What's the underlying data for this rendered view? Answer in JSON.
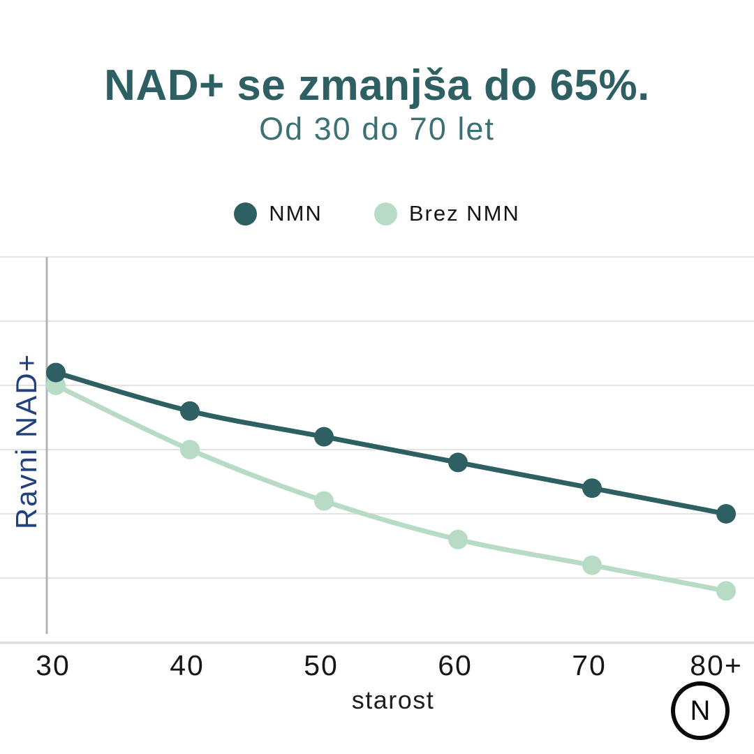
{
  "header": {
    "title": "NAD+ se zmanjša do 65%.",
    "subtitle": "Od 30 do 70 let"
  },
  "legend": {
    "items": [
      {
        "label": "NMN",
        "color": "#2d5f63"
      },
      {
        "label": "Brez NMN",
        "color": "#b7dbc5"
      }
    ]
  },
  "chart_data": {
    "type": "line",
    "title": "NAD+ se zmanjša do 65%.",
    "subtitle": "Od 30 do 70 let",
    "categories": [
      "30",
      "40",
      "50",
      "60",
      "70",
      "80+"
    ],
    "series": [
      {
        "name": "NMN",
        "color": "#2d5f63",
        "values": [
          42,
          36,
          32,
          28,
          24,
          20
        ]
      },
      {
        "name": "Brez NMN",
        "color": "#b7dbc5",
        "values": [
          40,
          30,
          22,
          16,
          12,
          8
        ]
      }
    ],
    "xlabel": "starost",
    "ylabel": "Ravni NAD+",
    "ylim": [
      0,
      60
    ],
    "y_gridline_step": 10,
    "y_tick_labels_shown": false,
    "grid": "horizontal",
    "legend_position": "top",
    "markers": "filled-circle"
  },
  "logo": {
    "letter": "N"
  },
  "colors": {
    "title": "#2d5f63",
    "subtitle": "#3d7074",
    "ylabel": "#21407e",
    "grid": "#e3e3e3",
    "axis_vertical": "#b0b4b8",
    "axis_bottom": "#dcdcdc",
    "background": "#ffffff"
  }
}
